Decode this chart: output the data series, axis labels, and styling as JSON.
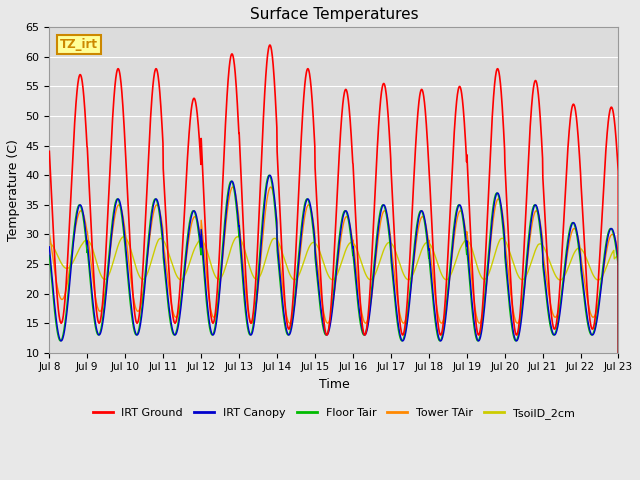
{
  "title": "Surface Temperatures",
  "xlabel": "Time",
  "ylabel": "Temperature (C)",
  "ylim": [
    10,
    65
  ],
  "annotation_text": "TZ_irt",
  "annotation_color": "#cc8800",
  "annotation_bg": "#ffff99",
  "plot_bg_color": "#dcdcdc",
  "fig_bg_color": "#e8e8e8",
  "grid_color": "#ffffff",
  "series": {
    "IRT Ground": {
      "color": "#ff0000",
      "lw": 1.2
    },
    "IRT Canopy": {
      "color": "#0000cc",
      "lw": 1.0
    },
    "Floor Tair": {
      "color": "#00bb00",
      "lw": 1.0
    },
    "Tower TAir": {
      "color": "#ff8800",
      "lw": 1.0
    },
    "TsoilD_2cm": {
      "color": "#cccc00",
      "lw": 1.0
    }
  },
  "xtick_labels": [
    "Jul 8",
    "Jul 9",
    "Jul 10",
    "Jul 11",
    "Jul 12",
    "Jul 13",
    "Jul 14",
    "Jul 15",
    "Jul 16",
    "Jul 17",
    "Jul 18",
    "Jul 19",
    "Jul 20",
    "Jul 21",
    "Jul 22",
    "Jul 23"
  ],
  "ytick_values": [
    10,
    15,
    20,
    25,
    30,
    35,
    40,
    45,
    50,
    55,
    60,
    65
  ],
  "irt_ground_peaks": [
    57,
    58,
    58,
    53,
    60.5,
    62,
    58,
    54.5,
    55.5,
    54.5,
    55,
    58,
    56,
    52,
    51.5
  ],
  "irt_ground_troughs": [
    15,
    15,
    15,
    15,
    15,
    15,
    14,
    13,
    13,
    13,
    13,
    13,
    13,
    14,
    14
  ],
  "canopy_peaks": [
    35,
    36,
    36,
    34,
    39,
    40,
    36,
    34,
    35,
    34,
    35,
    37,
    35,
    32,
    31
  ],
  "canopy_troughs": [
    12,
    13,
    13,
    13,
    13,
    13,
    13,
    13,
    13,
    12,
    12,
    12,
    12,
    13,
    13
  ],
  "floor_peaks": [
    35,
    36,
    36,
    34,
    39,
    40,
    36,
    34,
    35,
    34,
    35,
    37,
    35,
    32,
    31
  ],
  "floor_troughs": [
    12,
    13,
    13,
    13,
    13,
    13,
    13,
    13,
    13,
    12,
    12,
    12,
    12,
    13,
    13
  ],
  "tower_peaks": [
    34,
    35,
    35,
    33,
    38,
    38,
    35,
    33,
    34,
    33,
    34,
    36,
    34,
    31,
    30
  ],
  "tower_troughs": [
    19,
    17,
    17,
    16,
    16,
    15,
    15,
    15,
    15,
    15,
    15,
    15,
    15,
    16,
    16
  ],
  "tsoil_peaks": [
    29,
    30,
    30,
    29,
    30,
    30,
    29,
    29,
    29,
    29,
    29,
    30,
    29,
    28,
    28
  ],
  "tsoil_troughs": [
    24,
    22,
    22,
    22,
    22,
    22,
    22,
    22,
    22,
    22,
    22,
    22,
    22,
    22,
    22
  ]
}
